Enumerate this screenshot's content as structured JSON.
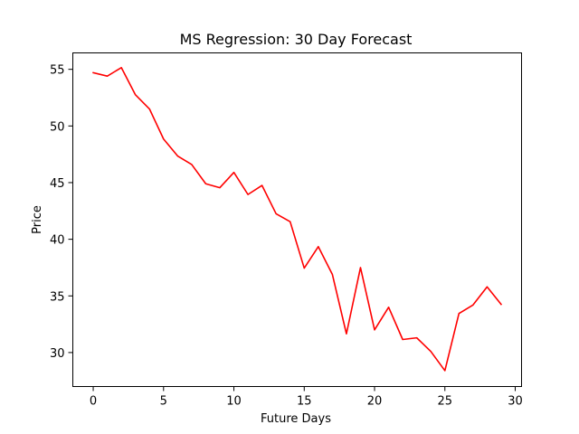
{
  "chart_data": {
    "type": "line",
    "title": "MS Regression: 30 Day Forecast",
    "xlabel": "Future Days",
    "ylabel": "Price",
    "xlim": [
      -1.45,
      30.45
    ],
    "ylim": [
      27.0,
      56.45
    ],
    "xticks": [
      0,
      5,
      10,
      15,
      20,
      25,
      30
    ],
    "yticks": [
      30,
      35,
      40,
      45,
      50,
      55
    ],
    "grid": false,
    "series": [
      {
        "color": "#ff0000",
        "x": [
          0,
          1,
          2,
          3,
          4,
          5,
          6,
          7,
          8,
          9,
          10,
          11,
          12,
          13,
          14,
          15,
          16,
          17,
          18,
          19,
          20,
          21,
          22,
          23,
          24,
          25,
          26,
          27,
          28,
          29
        ],
        "values": [
          54.7,
          54.4,
          55.15,
          52.75,
          51.5,
          48.85,
          47.35,
          46.6,
          44.9,
          44.55,
          45.9,
          43.95,
          44.75,
          42.25,
          41.55,
          37.45,
          39.35,
          36.9,
          31.65,
          37.5,
          32.0,
          34.0,
          31.15,
          31.3,
          30.1,
          28.4,
          33.45,
          34.2,
          35.8,
          34.25
        ]
      }
    ]
  }
}
